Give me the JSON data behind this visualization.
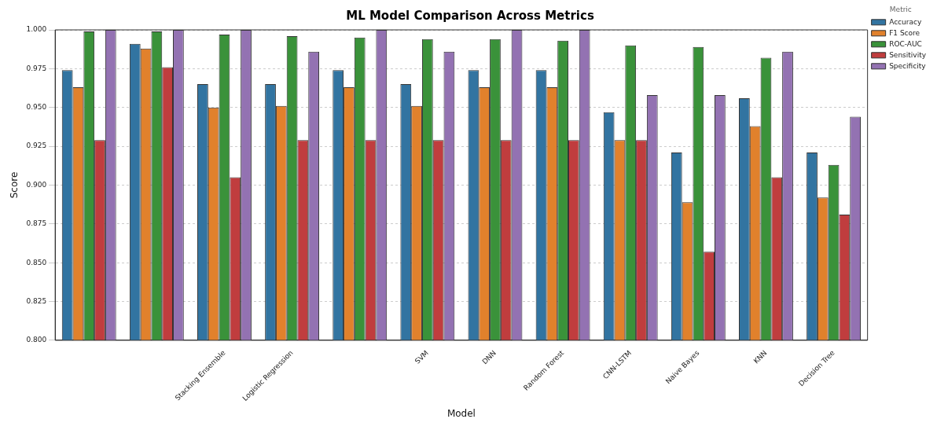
{
  "chart_data": {
    "type": "bar",
    "title": "ML Model Comparison Across Metrics",
    "xlabel": "Model",
    "ylabel": "Score",
    "legend_title": "Metric",
    "legend": "top right",
    "grid": "y",
    "categories": [
      null,
      null,
      "Stacking Ensemble",
      "Logistic Regression",
      null,
      "SVM",
      "DNN",
      "Random Forest",
      "CNN-LSTM",
      "Naive Bayes",
      "KNN",
      "Decision Tree"
    ],
    "series": [
      {
        "name": "Accuracy",
        "color": "#3274a1",
        "values": [
          0.974,
          0.991,
          0.965,
          0.965,
          0.974,
          0.965,
          0.974,
          0.974,
          0.947,
          0.921,
          0.956,
          0.921
        ]
      },
      {
        "name": "F1 Score",
        "color": "#e1812c",
        "values": [
          0.963,
          0.988,
          0.95,
          0.951,
          0.963,
          0.951,
          0.963,
          0.963,
          0.929,
          0.889,
          0.938,
          0.892
        ]
      },
      {
        "name": "ROC-AUC",
        "color": "#3a923a",
        "values": [
          0.999,
          0.999,
          0.997,
          0.996,
          0.995,
          0.994,
          0.994,
          0.993,
          0.99,
          0.989,
          0.982,
          0.913
        ]
      },
      {
        "name": "Sensitivity",
        "color": "#c03d3e",
        "values": [
          0.929,
          0.976,
          0.905,
          0.929,
          0.929,
          0.929,
          0.929,
          0.929,
          0.929,
          0.857,
          0.905,
          0.881
        ]
      },
      {
        "name": "Specificity",
        "color": "#9372b2",
        "values": [
          1.0,
          1.0,
          1.0,
          0.986,
          1.0,
          0.986,
          1.0,
          1.0,
          0.958,
          0.958,
          0.986,
          0.944
        ]
      }
    ],
    "ylim": [
      0.8,
      1.0
    ],
    "yticks": [
      {
        "value": 0.8,
        "label": "0.800"
      },
      {
        "value": 0.825,
        "label": "0.825"
      },
      {
        "value": 0.85,
        "label": "0.850"
      },
      {
        "value": 0.875,
        "label": "0.875"
      },
      {
        "value": 0.9,
        "label": "0.900"
      },
      {
        "value": 0.925,
        "label": "0.925"
      },
      {
        "value": 0.95,
        "label": "0.950"
      },
      {
        "value": 0.975,
        "label": "0.975"
      },
      {
        "value": 1.0,
        "label": "1.000"
      }
    ]
  }
}
